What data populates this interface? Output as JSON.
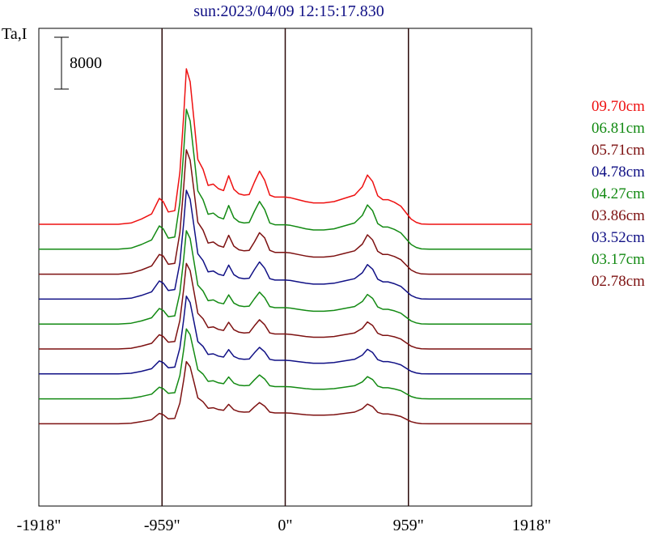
{
  "chart_data": {
    "type": "line",
    "title": "sun:2023/04/09 12:15:17.830",
    "ylabel": "Ta,I",
    "scale_bar_label": "8000",
    "xlim": [
      -1918,
      1918
    ],
    "x_ticks": [
      {
        "value": -1918,
        "label": "-1918\""
      },
      {
        "value": -959,
        "label": "-959\""
      },
      {
        "value": 0,
        "label": "0\""
      },
      {
        "value": 959,
        "label": "959\""
      },
      {
        "value": 1918,
        "label": "1918\""
      }
    ],
    "vertical_lines": [
      -959,
      0,
      959
    ],
    "limb_marker": 959,
    "y_axis_ticks": false,
    "grid": false,
    "legend_position": "right",
    "x": [
      -1918,
      -1300,
      -1200,
      -1120,
      -1040,
      -980,
      -950,
      -910,
      -860,
      -820,
      -790,
      -770,
      -740,
      -710,
      -680,
      -640,
      -600,
      -560,
      -520,
      -480,
      -440,
      -400,
      -360,
      -320,
      -280,
      -240,
      -200,
      -160,
      -120,
      -80,
      -30,
      0,
      40,
      100,
      160,
      220,
      300,
      380,
      460,
      540,
      600,
      640,
      680,
      720,
      760,
      800,
      850,
      900,
      940,
      980,
      1020,
      1060,
      1120,
      1200,
      1918
    ],
    "series": [
      {
        "name": "09.70cm",
        "color": "#ee1111",
        "offset": 0,
        "scale": 1.0,
        "values": [
          0,
          0,
          200,
          800,
          1600,
          4000,
          3500,
          1900,
          2100,
          8000,
          17000,
          24000,
          22000,
          16000,
          10000,
          8500,
          6000,
          6200,
          5500,
          5200,
          7500,
          5400,
          4700,
          4500,
          4600,
          6500,
          8200,
          6800,
          4500,
          4200,
          4200,
          4200,
          4100,
          3800,
          3500,
          3300,
          3300,
          3500,
          4000,
          4500,
          5800,
          7600,
          6600,
          4400,
          3800,
          3800,
          3400,
          2800,
          1800,
          800,
          300,
          50,
          0,
          0,
          0
        ]
      },
      {
        "name": "06.81cm",
        "color": "#138a13",
        "offset": 3850,
        "scale": 0.9,
        "values": [
          0,
          0,
          200,
          800,
          1600,
          4000,
          3500,
          1900,
          2100,
          8000,
          17000,
          24000,
          22000,
          16000,
          10000,
          8500,
          6000,
          6200,
          5500,
          5200,
          7500,
          5400,
          4700,
          4500,
          4600,
          6500,
          8200,
          6800,
          4500,
          4200,
          4200,
          4200,
          4100,
          3800,
          3500,
          3300,
          3300,
          3500,
          4000,
          4500,
          5800,
          7600,
          6600,
          4400,
          3800,
          3800,
          3400,
          2800,
          1800,
          800,
          300,
          50,
          0,
          0,
          0
        ]
      },
      {
        "name": "05.71cm",
        "color": "#7d1111",
        "offset": 7700,
        "scale": 0.8,
        "values": [
          0,
          0,
          200,
          800,
          1600,
          3800,
          3500,
          1900,
          2100,
          8000,
          17000,
          24000,
          22000,
          16000,
          10000,
          8500,
          6000,
          6200,
          5500,
          5200,
          7500,
          5400,
          4700,
          4500,
          4600,
          6200,
          8000,
          7000,
          4600,
          4200,
          4200,
          4200,
          4100,
          3800,
          3500,
          3300,
          3300,
          3500,
          4000,
          4500,
          5800,
          7600,
          6600,
          4400,
          3800,
          3800,
          3400,
          2800,
          1800,
          800,
          300,
          50,
          0,
          0,
          0
        ]
      },
      {
        "name": "04.78cm",
        "color": "#101085",
        "offset": 11550,
        "scale": 0.7,
        "values": [
          0,
          0,
          200,
          800,
          1600,
          4000,
          3500,
          1900,
          2100,
          8000,
          17000,
          24000,
          22000,
          16000,
          10000,
          8500,
          6000,
          6200,
          5500,
          5200,
          7500,
          5400,
          4700,
          4500,
          4600,
          6500,
          8200,
          6800,
          4500,
          4200,
          4200,
          4200,
          4100,
          3800,
          3500,
          3300,
          3300,
          3500,
          4000,
          4500,
          5800,
          7600,
          6600,
          4400,
          3800,
          3800,
          3400,
          2800,
          1800,
          800,
          300,
          50,
          0,
          0,
          0
        ]
      },
      {
        "name": "04.27cm",
        "color": "#138a13",
        "offset": 15400,
        "scale": 0.6,
        "values": [
          0,
          0,
          200,
          800,
          1600,
          4000,
          3500,
          1900,
          2100,
          8000,
          17000,
          24000,
          22000,
          16000,
          10000,
          8500,
          6000,
          6200,
          5500,
          5200,
          7500,
          5400,
          4700,
          4500,
          4600,
          6500,
          8200,
          6800,
          4500,
          4200,
          4200,
          4200,
          4100,
          3800,
          3500,
          3300,
          3300,
          3500,
          4000,
          4500,
          5800,
          7600,
          6600,
          4400,
          3800,
          3800,
          3400,
          2800,
          1800,
          800,
          300,
          50,
          0,
          0,
          0
        ]
      },
      {
        "name": "03.86cm",
        "color": "#7d1111",
        "offset": 19250,
        "scale": 0.55,
        "values": [
          0,
          0,
          200,
          800,
          1600,
          4000,
          3500,
          1900,
          2100,
          8000,
          17000,
          24000,
          22000,
          16000,
          10000,
          8500,
          6000,
          6200,
          5500,
          5200,
          7500,
          5400,
          4700,
          4500,
          4600,
          6500,
          8200,
          6800,
          4500,
          4200,
          4200,
          4200,
          4100,
          3800,
          3500,
          3300,
          3300,
          3500,
          4000,
          4500,
          5800,
          7600,
          6600,
          4400,
          3800,
          3800,
          3400,
          2800,
          1800,
          800,
          300,
          50,
          0,
          0,
          0
        ]
      },
      {
        "name": "03.52cm",
        "color": "#101085",
        "offset": 23100,
        "scale": 0.5,
        "values": [
          0,
          0,
          200,
          800,
          1600,
          4000,
          3500,
          1900,
          2100,
          8000,
          17000,
          24000,
          22000,
          16000,
          10000,
          8500,
          6000,
          6200,
          5500,
          5200,
          7500,
          5400,
          4700,
          4500,
          4600,
          6500,
          8200,
          6800,
          4500,
          4200,
          4200,
          4200,
          4100,
          3800,
          3500,
          3300,
          3300,
          3500,
          4000,
          4500,
          5800,
          7600,
          6600,
          4400,
          3800,
          3800,
          3400,
          2800,
          1800,
          800,
          300,
          50,
          0,
          0,
          0
        ]
      },
      {
        "name": "03.17cm",
        "color": "#138a13",
        "offset": 26950,
        "scale": 0.45,
        "values": [
          0,
          0,
          200,
          800,
          1600,
          4000,
          3500,
          1900,
          2100,
          8000,
          17000,
          24000,
          22000,
          16000,
          10000,
          8500,
          6000,
          6200,
          5500,
          5200,
          7500,
          5400,
          4700,
          4500,
          4600,
          6500,
          8200,
          6800,
          4500,
          4200,
          4200,
          4200,
          4100,
          3800,
          3500,
          3300,
          3300,
          3500,
          4000,
          4500,
          5800,
          7600,
          6600,
          4400,
          3800,
          3800,
          3400,
          2800,
          1800,
          800,
          300,
          50,
          0,
          0,
          0
        ]
      },
      {
        "name": "02.78cm",
        "color": "#7d1111",
        "offset": 30800,
        "scale": 0.4,
        "values": [
          0,
          0,
          200,
          800,
          1600,
          4000,
          3500,
          1900,
          2100,
          8000,
          17000,
          24000,
          22000,
          16000,
          10000,
          8500,
          6000,
          6200,
          5500,
          5200,
          7500,
          5400,
          4700,
          4500,
          4600,
          6500,
          8200,
          6800,
          4500,
          4200,
          4200,
          4200,
          4100,
          3800,
          3500,
          3300,
          3300,
          3500,
          4000,
          4500,
          5800,
          7600,
          6600,
          4400,
          3800,
          3800,
          3400,
          2800,
          1800,
          800,
          300,
          50,
          0,
          0,
          0
        ]
      }
    ]
  }
}
